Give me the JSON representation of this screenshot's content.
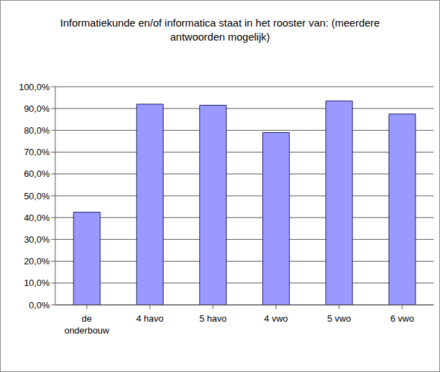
{
  "chart_data": {
    "type": "bar",
    "title": "Informatiekunde en/of informatica staat in het rooster van: (meerdere antwoorden mogelijk)",
    "categories": [
      "de onderbouw",
      "4 havo",
      "5 havo",
      "4 vwo",
      "5 vwo",
      "6 vwo"
    ],
    "values": [
      42.5,
      92,
      91.5,
      79,
      93.5,
      87.5
    ],
    "color": "#9999ff",
    "ylim": [
      0,
      100
    ],
    "yticks": [
      {
        "value": 0,
        "label": "0,0%"
      },
      {
        "value": 10,
        "label": "10,0%"
      },
      {
        "value": 20,
        "label": "20,0%"
      },
      {
        "value": 30,
        "label": "30,0%"
      },
      {
        "value": 40,
        "label": "40,0%"
      },
      {
        "value": 50,
        "label": "50,0%"
      },
      {
        "value": 60,
        "label": "60,0%"
      },
      {
        "value": 70,
        "label": "70,0%"
      },
      {
        "value": 80,
        "label": "80,0%"
      },
      {
        "value": 90,
        "label": "90,0%"
      },
      {
        "value": 100,
        "label": "100,0%"
      }
    ],
    "grid": true
  }
}
